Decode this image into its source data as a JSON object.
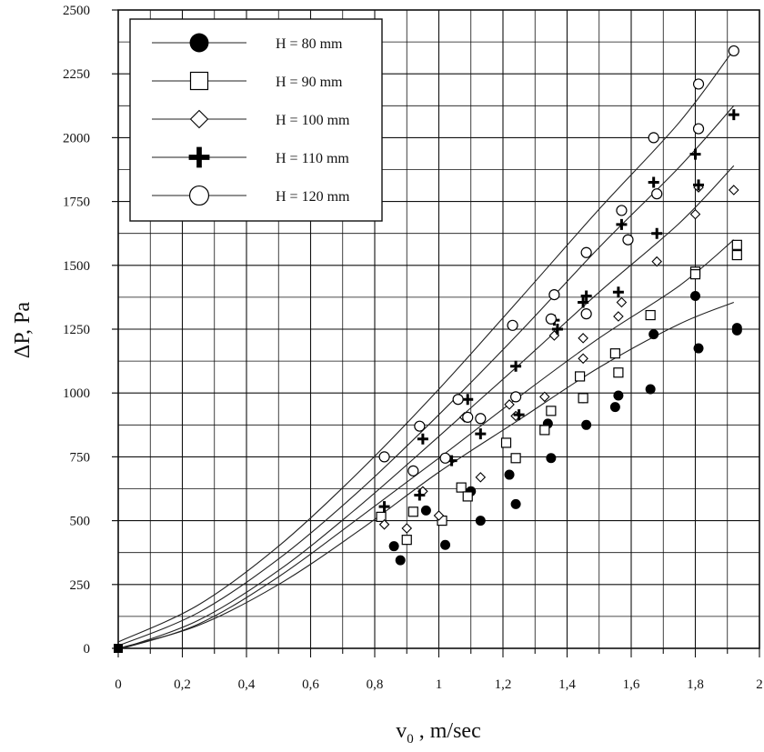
{
  "chart_data": {
    "type": "scatter",
    "title": "",
    "xlabel": "v",
    "xlabel_sub": "0",
    "xlabel_unit": " , m/sec",
    "ylabel": "ΔP, Pa",
    "xlim": [
      0,
      2
    ],
    "ylim": [
      0,
      2500
    ],
    "x_ticks": [
      0,
      0.2,
      0.4,
      0.6,
      0.8,
      1,
      1.2,
      1.4,
      1.6,
      1.8,
      2
    ],
    "x_tick_labels": [
      "0",
      "0,2",
      "0,4",
      "0,6",
      "0,8",
      "1",
      "1,2",
      "1,4",
      "1,6",
      "1,8",
      "2"
    ],
    "y_ticks": [
      0,
      250,
      500,
      750,
      1000,
      1250,
      1500,
      1750,
      2000,
      2250,
      2500
    ],
    "y_tick_labels": [
      "0",
      "250",
      "500",
      "750",
      "1000",
      "1250",
      "1500",
      "1750",
      "2000",
      "2250",
      "2500"
    ],
    "grid": true,
    "legend_position": "top-left",
    "origin_point": [
      0,
      0
    ],
    "series": [
      {
        "name": "H = 80 mm",
        "marker": "filled-circle",
        "points": [
          [
            0.86,
            400
          ],
          [
            0.88,
            345
          ],
          [
            0.96,
            540
          ],
          [
            1.02,
            405
          ],
          [
            1.1,
            615
          ],
          [
            1.13,
            500
          ],
          [
            1.22,
            680
          ],
          [
            1.24,
            565
          ],
          [
            1.34,
            880
          ],
          [
            1.35,
            745
          ],
          [
            1.45,
            980
          ],
          [
            1.46,
            875
          ],
          [
            1.55,
            945
          ],
          [
            1.56,
            990
          ],
          [
            1.66,
            1015
          ],
          [
            1.67,
            1230
          ],
          [
            1.8,
            1380
          ],
          [
            1.81,
            1175
          ],
          [
            1.93,
            1255
          ],
          [
            1.93,
            1245
          ]
        ],
        "fit_curve": [
          [
            0,
            0
          ],
          [
            0.25,
            90
          ],
          [
            0.5,
            250
          ],
          [
            0.75,
            460
          ],
          [
            1,
            690
          ],
          [
            1.25,
            895
          ],
          [
            1.5,
            1100
          ],
          [
            1.75,
            1270
          ],
          [
            1.92,
            1355
          ]
        ]
      },
      {
        "name": "H = 90 mm",
        "marker": "open-square",
        "points": [
          [
            0.82,
            515
          ],
          [
            0.9,
            425
          ],
          [
            0.92,
            535
          ],
          [
            1.01,
            500
          ],
          [
            1.07,
            630
          ],
          [
            1.09,
            595
          ],
          [
            1.21,
            805
          ],
          [
            1.24,
            745
          ],
          [
            1.33,
            855
          ],
          [
            1.35,
            930
          ],
          [
            1.44,
            1065
          ],
          [
            1.45,
            980
          ],
          [
            1.55,
            1155
          ],
          [
            1.56,
            1080
          ],
          [
            1.66,
            1305
          ],
          [
            1.8,
            1475
          ],
          [
            1.8,
            1465
          ],
          [
            1.93,
            1580
          ],
          [
            1.93,
            1540
          ]
        ],
        "fit_curve": [
          [
            0,
            -5
          ],
          [
            0.25,
            95
          ],
          [
            0.5,
            280
          ],
          [
            0.75,
            510
          ],
          [
            1,
            745
          ],
          [
            1.25,
            985
          ],
          [
            1.5,
            1215
          ],
          [
            1.75,
            1420
          ],
          [
            1.92,
            1600
          ]
        ]
      },
      {
        "name": "H = 100 mm",
        "marker": "open-diamond",
        "points": [
          [
            0.83,
            485
          ],
          [
            0.9,
            470
          ],
          [
            0.95,
            615
          ],
          [
            1.0,
            520
          ],
          [
            1.08,
            905
          ],
          [
            1.13,
            670
          ],
          [
            1.22,
            955
          ],
          [
            1.24,
            910
          ],
          [
            1.33,
            985
          ],
          [
            1.36,
            1225
          ],
          [
            1.45,
            1135
          ],
          [
            1.45,
            1215
          ],
          [
            1.56,
            1300
          ],
          [
            1.57,
            1355
          ],
          [
            1.68,
            1515
          ],
          [
            1.8,
            1700
          ],
          [
            1.81,
            1805
          ],
          [
            1.92,
            1795
          ]
        ],
        "fit_curve": [
          [
            0,
            -5
          ],
          [
            0.25,
            110
          ],
          [
            0.5,
            305
          ],
          [
            0.75,
            555
          ],
          [
            1,
            830
          ],
          [
            1.25,
            1110
          ],
          [
            1.5,
            1395
          ],
          [
            1.75,
            1665
          ],
          [
            1.92,
            1890
          ]
        ]
      },
      {
        "name": "H = 110 mm",
        "marker": "plus",
        "points": [
          [
            0.83,
            555
          ],
          [
            0.94,
            600
          ],
          [
            0.95,
            820
          ],
          [
            1.04,
            735
          ],
          [
            1.09,
            975
          ],
          [
            1.13,
            840
          ],
          [
            1.24,
            1105
          ],
          [
            1.25,
            915
          ],
          [
            1.36,
            1285
          ],
          [
            1.37,
            1250
          ],
          [
            1.45,
            1355
          ],
          [
            1.46,
            1380
          ],
          [
            1.56,
            1395
          ],
          [
            1.57,
            1660
          ],
          [
            1.67,
            1825
          ],
          [
            1.68,
            1625
          ],
          [
            1.8,
            1935
          ],
          [
            1.81,
            1815
          ],
          [
            1.92,
            2090
          ]
        ],
        "fit_curve": [
          [
            0,
            10
          ],
          [
            0.25,
            140
          ],
          [
            0.5,
            350
          ],
          [
            0.75,
            615
          ],
          [
            1,
            915
          ],
          [
            1.25,
            1235
          ],
          [
            1.5,
            1570
          ],
          [
            1.75,
            1885
          ],
          [
            1.92,
            2125
          ]
        ]
      },
      {
        "name": "H = 120 mm",
        "marker": "open-circle",
        "points": [
          [
            0.83,
            750
          ],
          [
            0.92,
            695
          ],
          [
            0.94,
            870
          ],
          [
            1.02,
            745
          ],
          [
            1.06,
            975
          ],
          [
            1.09,
            905
          ],
          [
            1.13,
            900
          ],
          [
            1.23,
            1265
          ],
          [
            1.24,
            985
          ],
          [
            1.35,
            1290
          ],
          [
            1.36,
            1385
          ],
          [
            1.46,
            1550
          ],
          [
            1.46,
            1310
          ],
          [
            1.57,
            1715
          ],
          [
            1.59,
            1600
          ],
          [
            1.67,
            2000
          ],
          [
            1.68,
            1780
          ],
          [
            1.81,
            2210
          ],
          [
            1.81,
            2035
          ],
          [
            1.92,
            2340
          ]
        ],
        "fit_curve": [
          [
            0,
            25
          ],
          [
            0.25,
            170
          ],
          [
            0.5,
            400
          ],
          [
            0.75,
            690
          ],
          [
            1,
            1015
          ],
          [
            1.25,
            1365
          ],
          [
            1.5,
            1720
          ],
          [
            1.75,
            2060
          ],
          [
            1.92,
            2345
          ]
        ]
      }
    ]
  }
}
